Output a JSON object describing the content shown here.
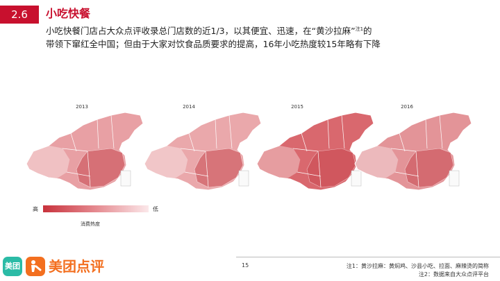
{
  "header": {
    "section_number": "2.6",
    "section_title": "小吃快餐",
    "description_line1_pre": "小吃快餐门店占大众点评收录总门店数的近1/3，以其便宜、迅速，在“黄沙拉麻”",
    "description_sup": "注1",
    "description_line1_post": "的",
    "description_line2": "带领下窜红全中国；但由于大家对饮食品质要求的提高，16年小吃热度较15年略有下降"
  },
  "maps": [
    {
      "year": "2013",
      "shade": "#e8a0a4"
    },
    {
      "year": "2014",
      "shade": "#eaa8ab"
    },
    {
      "year": "2015",
      "shade": "#d9686e"
    },
    {
      "year": "2016",
      "shade": "#e39498"
    }
  ],
  "legend": {
    "high_label": "高",
    "low_label": "低",
    "caption": "消费热度",
    "gradient_colors": [
      "#c8323c",
      "#fbe8ea"
    ]
  },
  "footer": {
    "page_number": "15",
    "note1": "注1：黄沙拉麻：黄焖鸡、沙县小吃、拉面、麻辣烫的简称",
    "note2": "注2：数据来自大众点评平台",
    "logo_text": "美团点评",
    "logo_small_text": "美团"
  },
  "colors": {
    "accent": "#c8102e",
    "logo_green": "#2bbba6",
    "logo_orange": "#f36f1f"
  }
}
